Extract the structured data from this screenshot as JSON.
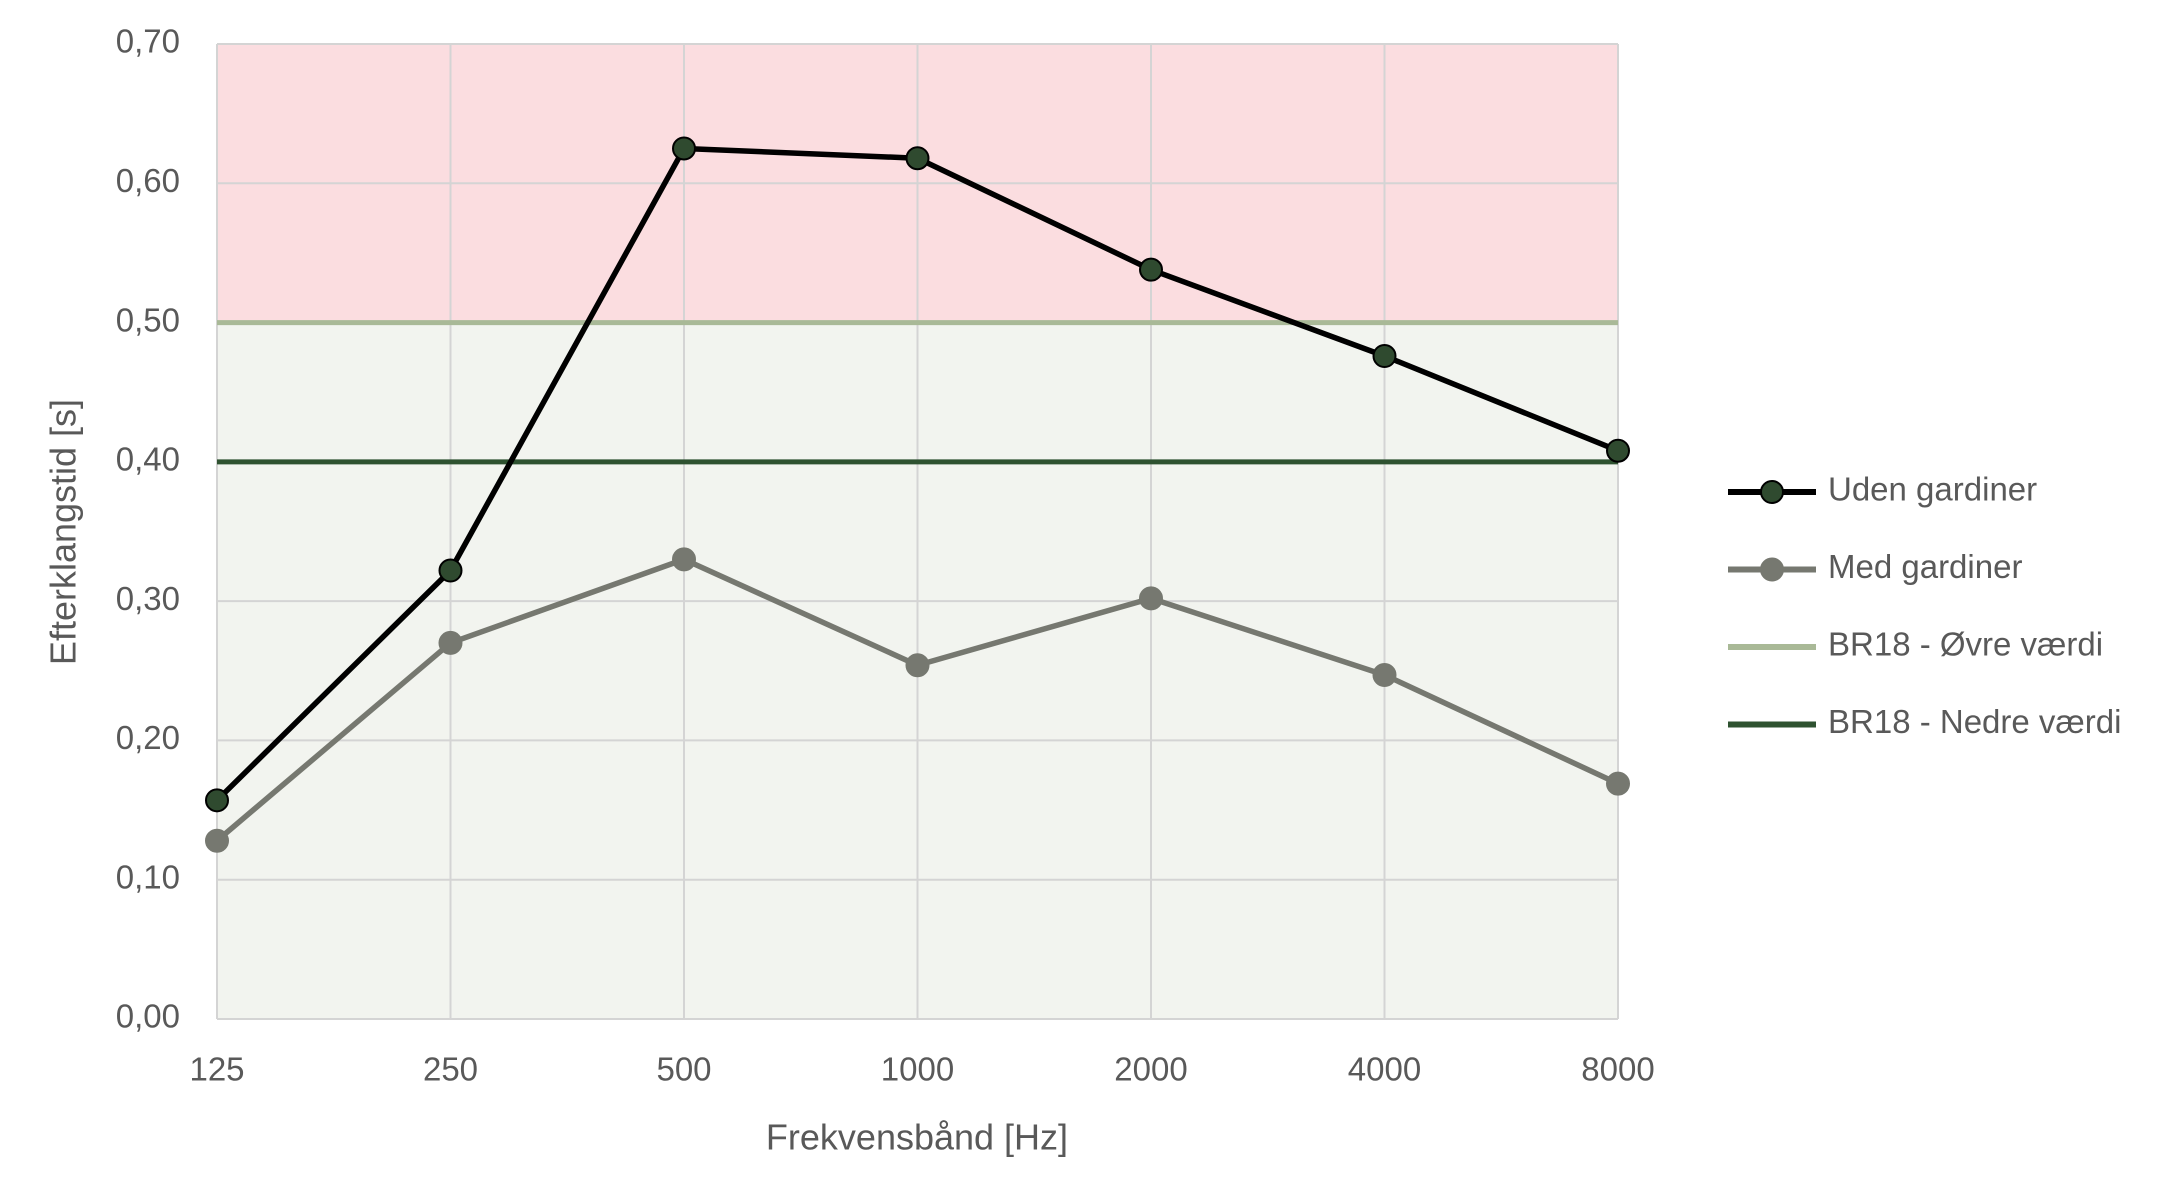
{
  "chart_data": {
    "type": "line",
    "x_label": "Frekvensbånd [Hz]",
    "y_label": "Efterklangstid [s]",
    "categories": [
      "125",
      "250",
      "500",
      "1000",
      "2000",
      "4000",
      "8000"
    ],
    "series": [
      {
        "name": "Uden gardiner",
        "color": "#000000",
        "marker_color": "#2f4a2f",
        "values": [
          0.157,
          0.322,
          0.625,
          0.618,
          0.538,
          0.476,
          0.408
        ]
      },
      {
        "name": "Med gardiner",
        "color": "#767870",
        "marker_color": "#767870",
        "values": [
          0.128,
          0.27,
          0.33,
          0.254,
          0.302,
          0.247,
          0.169
        ]
      },
      {
        "name": "BR18 - Øvre værdi",
        "color": "#a9b997",
        "values": [
          0.5,
          0.5,
          0.5,
          0.5,
          0.5,
          0.5,
          0.5
        ]
      },
      {
        "name": "BR18 - Nedre værdi",
        "color": "#2e5230",
        "values": [
          0.4,
          0.4,
          0.4,
          0.4,
          0.4,
          0.4,
          0.4
        ]
      }
    ],
    "shading": {
      "above": "#fbdde0",
      "below": "#f2f4ef"
    },
    "ylim": [
      0,
      0.7
    ],
    "yticks": [
      {
        "value": 0,
        "label": "0,00"
      },
      {
        "value": 0.1,
        "label": "0,10"
      },
      {
        "value": 0.2,
        "label": "0,20"
      },
      {
        "value": 0.3,
        "label": "0,30"
      },
      {
        "value": 0.4,
        "label": "0,40"
      },
      {
        "value": 0.5,
        "label": "0,50"
      },
      {
        "value": 0.6,
        "label": "0,60"
      },
      {
        "value": 0.7,
        "label": "0,70"
      }
    ],
    "grid": true,
    "legend": "right"
  }
}
